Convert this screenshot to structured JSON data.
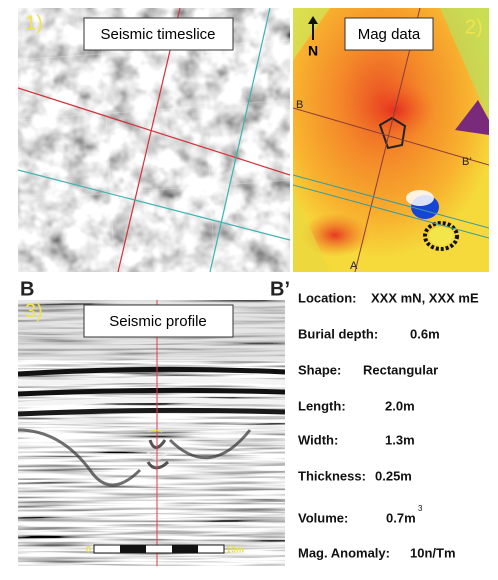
{
  "panels": [
    {
      "number": "1)",
      "title": "Seismic timeslice"
    },
    {
      "number": "2)",
      "title": "Mag data",
      "north": "N",
      "labels": [
        "B",
        "B’",
        "A"
      ]
    },
    {
      "number": "3)",
      "title": "Seismic profile",
      "scale": [
        "0",
        "10m"
      ]
    }
  ],
  "profile_ends": [
    "B",
    "B’"
  ],
  "properties": [
    {
      "label": "Location:",
      "value": "XXX mN, XXX mE"
    },
    {
      "label": "Burial depth:",
      "value": "0.6m"
    },
    {
      "label": "Shape:",
      "value": "Rectangular"
    },
    {
      "label": "Length:",
      "value": "2.0m"
    },
    {
      "label": "Width:",
      "value": "1.3m"
    },
    {
      "label": "Thickness:",
      "value": "0.25m"
    },
    {
      "label": "Volume:",
      "value": "0.7m",
      "superscript": "3"
    },
    {
      "label": "Mag. Anomaly:",
      "value": "10n/Tm"
    }
  ]
}
